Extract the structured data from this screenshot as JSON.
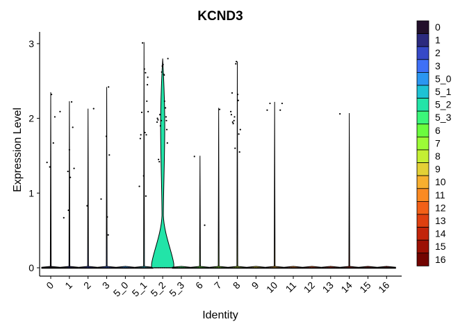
{
  "chart_data": {
    "type": "violin",
    "title": "KCND3",
    "xlabel": "Identity",
    "ylabel": "Expression Level",
    "ylim": [
      -0.12,
      3.17
    ],
    "yticks": [
      0,
      1,
      2,
      3
    ],
    "grid": false,
    "legend_placement": "right",
    "categories": [
      "0",
      "1",
      "2",
      "3",
      "5_0",
      "5_1",
      "5_2",
      "5_3",
      "6",
      "7",
      "8",
      "9",
      "10",
      "11",
      "12",
      "13",
      "14",
      "15",
      "16"
    ],
    "colors": [
      "#22102b",
      "#2c2a7e",
      "#3649c7",
      "#3e70f6",
      "#2b96f1",
      "#1ec2d4",
      "#22e4a8",
      "#3bf67a",
      "#6bfd3e",
      "#9cfc36",
      "#c4ef34",
      "#e3d036",
      "#f7af2f",
      "#fb8a22",
      "#f26017",
      "#df4010",
      "#c2240a",
      "#9c1004",
      "#720401"
    ],
    "violin_max": [
      2.35,
      2.23,
      2.13,
      2.42,
      0.02,
      3.02,
      2.8,
      0.02,
      1.5,
      2.14,
      2.76,
      0.02,
      2.22,
      0.02,
      0.02,
      0.02,
      2.07,
      0.02,
      0.02
    ],
    "points": [
      [
        [
          -0.2,
          1.41
        ],
        [
          -0.05,
          1.35
        ],
        [
          0.04,
          2.32
        ],
        [
          0.14,
          1.67
        ],
        [
          0.22,
          2.02
        ],
        [
          0.5,
          2.09
        ]
      ],
      [
        [
          -0.3,
          0.67
        ],
        [
          -0.08,
          1.29
        ],
        [
          -0.05,
          0.77
        ],
        [
          0.0,
          1.58
        ],
        [
          0.05,
          1.21
        ],
        [
          0.12,
          2.22
        ],
        [
          0.18,
          1.88
        ],
        [
          0.25,
          1.33
        ]
      ],
      [
        [
          -0.05,
          0.83
        ],
        [
          0.3,
          2.13
        ]
      ],
      [
        [
          -0.3,
          0.92
        ],
        [
          -0.02,
          1.76
        ],
        [
          0.03,
          0.68
        ],
        [
          0.08,
          0.44
        ],
        [
          0.1,
          2.42
        ],
        [
          0.14,
          1.51
        ]
      ],
      [],
      [
        [
          -0.25,
          1.09
        ],
        [
          -0.2,
          1.73
        ],
        [
          -0.17,
          1.78
        ],
        [
          -0.12,
          2.08
        ],
        [
          -0.08,
          3.01
        ],
        [
          -0.02,
          1.23
        ],
        [
          0.02,
          2.66
        ],
        [
          0.05,
          1.81
        ],
        [
          0.08,
          2.61
        ],
        [
          0.1,
          0.96
        ],
        [
          0.12,
          1.78
        ],
        [
          0.15,
          2.23
        ],
        [
          0.18,
          2.45
        ],
        [
          0.2,
          2.55
        ],
        [
          0.22,
          2.09
        ]
      ],
      [
        [
          -0.3,
          1.95
        ],
        [
          -0.28,
          2.0
        ],
        [
          -0.25,
          1.98
        ],
        [
          -0.22,
          1.45
        ],
        [
          -0.18,
          1.42
        ],
        [
          -0.15,
          2.05
        ],
        [
          -0.12,
          1.9
        ],
        [
          -0.08,
          1.97
        ],
        [
          -0.05,
          2.62
        ],
        [
          -0.02,
          2.7
        ],
        [
          0.02,
          2.72
        ],
        [
          0.05,
          2.59
        ],
        [
          0.08,
          2.58
        ],
        [
          0.1,
          2.23
        ],
        [
          0.15,
          2.14
        ],
        [
          0.18,
          2.02
        ],
        [
          0.2,
          1.97
        ],
        [
          0.22,
          1.85
        ],
        [
          0.25,
          1.67
        ],
        [
          0.28,
          2.8
        ]
      ],
      [],
      [
        [
          -0.3,
          1.49
        ],
        [
          0.25,
          0.57
        ]
      ],
      [
        [
          0.05,
          2.12
        ]
      ],
      [
        [
          -0.35,
          2.09
        ],
        [
          -0.32,
          2.05
        ],
        [
          -0.28,
          2.34
        ],
        [
          -0.25,
          1.95
        ],
        [
          -0.22,
          1.93
        ],
        [
          -0.18,
          1.97
        ],
        [
          -0.15,
          2.02
        ],
        [
          -0.12,
          1.6
        ],
        [
          -0.08,
          2.73
        ],
        [
          -0.05,
          2.76
        ],
        [
          0.02,
          2.32
        ],
        [
          0.05,
          2.24
        ],
        [
          0.08,
          1.79
        ],
        [
          0.12,
          1.55
        ],
        [
          0.16,
          1.85
        ]
      ],
      [],
      [
        [
          -0.4,
          2.11
        ],
        [
          -0.25,
          2.2
        ],
        [
          0.3,
          2.11
        ],
        [
          0.4,
          2.2
        ]
      ],
      [],
      [],
      [],
      [
        [
          -0.5,
          2.06
        ]
      ],
      [],
      []
    ]
  }
}
